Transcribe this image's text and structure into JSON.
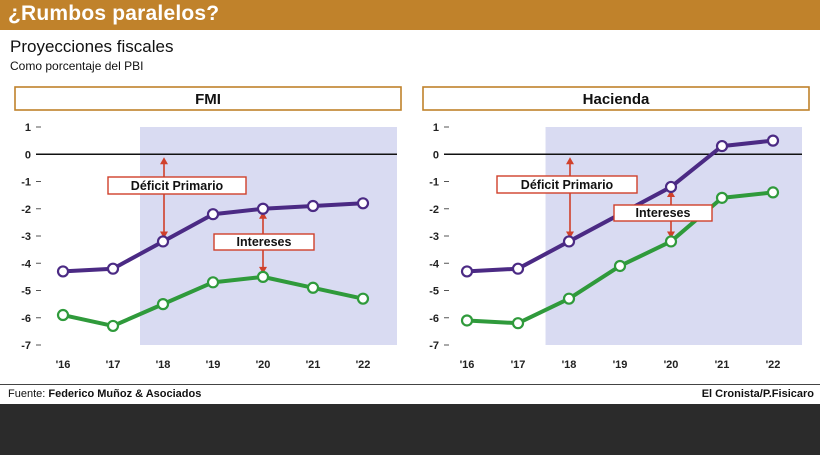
{
  "header": {
    "title": "¿Rumbos paralelos?",
    "subtitle": "Proyecciones fiscales",
    "note": "Como porcentaje del PBI"
  },
  "footer": {
    "source_label": "Fuente: ",
    "source_name": "Federico Muñoz & Asociados",
    "credit": "El Cronista/P.Fisicaro"
  },
  "colors": {
    "title_bar": "#c0822b",
    "panel_border": "#c0822b",
    "shade": "#d9dbf2",
    "primario_line": "#4b2a84",
    "total_line": "#2f9a3b",
    "annotation": "#d0402b"
  },
  "chart_data": [
    {
      "type": "line",
      "title": "FMI",
      "categories": [
        "'16",
        "'17",
        "'18",
        "'19",
        "'20",
        "'21",
        "'22"
      ],
      "ylim": [
        -7,
        1
      ],
      "yticks": [
        "1",
        "0",
        "-1",
        "-2",
        "-3",
        "-4",
        "-5",
        "-6",
        "-7"
      ],
      "shaded_from": "'18",
      "series": [
        {
          "key": "primario",
          "values": [
            -4.3,
            -4.2,
            -3.2,
            -2.2,
            -2.0,
            -1.9,
            -1.8
          ]
        },
        {
          "key": "total",
          "values": [
            -5.9,
            -6.3,
            -5.5,
            -4.7,
            -4.5,
            -4.9,
            -5.3
          ]
        }
      ],
      "annotations": [
        {
          "label": "Déficit Primario",
          "at": "'18",
          "between": [
            0,
            -3.2
          ]
        },
        {
          "label": "Intereses",
          "at": "'20",
          "between": [
            -2.0,
            -4.5
          ]
        }
      ]
    },
    {
      "type": "line",
      "title": "Hacienda",
      "categories": [
        "'16",
        "'17",
        "'18",
        "'19",
        "'20",
        "'21",
        "'22"
      ],
      "ylim": [
        -7,
        1
      ],
      "yticks": [
        "1",
        "0",
        "-1",
        "-2",
        "-3",
        "-4",
        "-5",
        "-6",
        "-7"
      ],
      "shaded_from": "'18",
      "series": [
        {
          "key": "primario",
          "values": [
            -4.3,
            -4.2,
            -3.2,
            -2.2,
            -1.2,
            0.3,
            0.5
          ]
        },
        {
          "key": "total",
          "values": [
            -6.1,
            -6.2,
            -5.3,
            -4.1,
            -3.2,
            -1.6,
            -1.4
          ]
        }
      ],
      "annotations": [
        {
          "label": "Déficit Primario",
          "at": "'18",
          "between": [
            0,
            -3.2
          ]
        },
        {
          "label": "Intereses",
          "at": "'20",
          "between": [
            -1.2,
            -3.2
          ]
        }
      ]
    }
  ]
}
